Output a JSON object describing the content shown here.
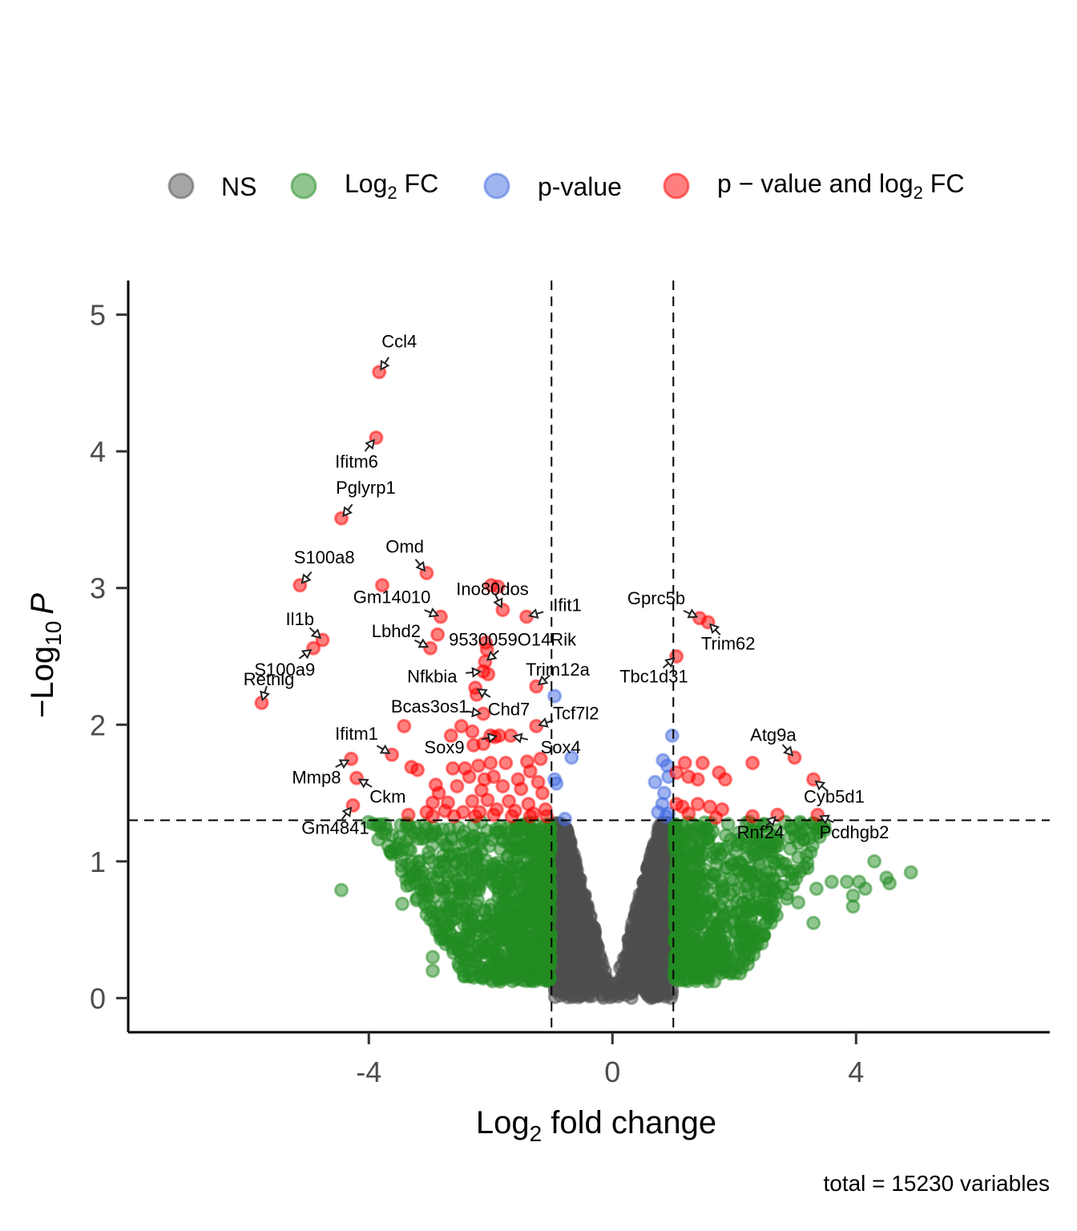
{
  "chart_data": {
    "type": "scatter",
    "subtype": "volcano",
    "title": "",
    "xlabel": "Log2 fold change",
    "xlabel_parts": {
      "base": "Log",
      "sub": "2",
      "rest": " fold change"
    },
    "ylabel": "-Log10 P",
    "ylabel_parts": {
      "prefix": "−Log",
      "sub": "10",
      "italic": "P"
    },
    "caption": "total = 15230 variables",
    "xlim": [
      -7.95,
      7.18
    ],
    "ylim": [
      -0.25,
      5.25
    ],
    "x_ticks": [
      -4,
      0,
      4
    ],
    "x_tick_labels": [
      "-4",
      "0",
      "4"
    ],
    "y_ticks": [
      0,
      1,
      2,
      3,
      4,
      5
    ],
    "y_tick_labels": [
      "0",
      "1",
      "2",
      "3",
      "4",
      "5"
    ],
    "grid": false,
    "cutoffs": {
      "log2fc": [
        -1,
        1
      ],
      "neg_log10_p": 1.301
    },
    "legend_position": "top",
    "legend": [
      {
        "key": "NS",
        "label": "NS",
        "color": "#4d4d4d"
      },
      {
        "key": "FC",
        "label_base": "Log",
        "label_sub": "2",
        "label_rest": " FC",
        "label": "Log2 FC",
        "color": "#228b22"
      },
      {
        "key": "P",
        "label": "p-value",
        "color": "#4169e1"
      },
      {
        "key": "FC_P",
        "label_base": "p − value and log",
        "label_sub": "2",
        "label_rest": " FC",
        "label": "p − value and log2 FC",
        "color": "#ff0000"
      }
    ],
    "total_variables": 15230,
    "labeled_points": [
      {
        "gene": "Ccl4",
        "x": -3.83,
        "y": 4.58,
        "category": "FC_P",
        "lx": -3.5,
        "ly": 4.76,
        "anchor": "middle"
      },
      {
        "gene": "Ifitm6",
        "x": -3.88,
        "y": 4.1,
        "category": "FC_P",
        "lx": -4.2,
        "ly": 3.88,
        "anchor": "middle"
      },
      {
        "gene": "Pglyrp1",
        "x": -4.45,
        "y": 3.51,
        "category": "FC_P",
        "lx": -4.05,
        "ly": 3.69,
        "anchor": "middle"
      },
      {
        "gene": "S100a8",
        "x": -5.13,
        "y": 3.02,
        "category": "FC_P",
        "lx": -4.73,
        "ly": 3.18,
        "anchor": "middle"
      },
      {
        "gene": "Omd",
        "x": -3.05,
        "y": 3.11,
        "category": "FC_P",
        "lx": -3.41,
        "ly": 3.26,
        "anchor": "middle"
      },
      {
        "gene": "Gm14010",
        "x": -2.82,
        "y": 2.79,
        "category": "FC_P",
        "lx": -3.62,
        "ly": 2.89,
        "anchor": "middle"
      },
      {
        "gene": "Ino80dos",
        "x": -1.8,
        "y": 2.84,
        "category": "FC_P",
        "lx": -1.97,
        "ly": 2.95,
        "anchor": "middle"
      },
      {
        "gene": "Ifit1",
        "x": -1.41,
        "y": 2.79,
        "category": "FC_P",
        "lx": -0.74,
        "ly": 2.83,
        "anchor": "middle"
      },
      {
        "gene": "Il1b",
        "x": -4.76,
        "y": 2.62,
        "category": "FC_P",
        "lx": -5.13,
        "ly": 2.73,
        "anchor": "middle"
      },
      {
        "gene": "S100a9",
        "x": -4.91,
        "y": 2.56,
        "category": "FC_P",
        "lx": -5.38,
        "ly": 2.36,
        "anchor": "middle"
      },
      {
        "gene": "Lbhd2",
        "x": -2.99,
        "y": 2.56,
        "category": "FC_P",
        "lx": -3.55,
        "ly": 2.64,
        "anchor": "middle"
      },
      {
        "gene": "9530059O14Rik",
        "x": -2.09,
        "y": 2.46,
        "category": "FC_P",
        "lx": -1.64,
        "ly": 2.58,
        "anchor": "middle"
      },
      {
        "gene": "Nfkbia",
        "x": -2.12,
        "y": 2.39,
        "category": "FC_P",
        "lx": -2.96,
        "ly": 2.31,
        "anchor": "middle"
      },
      {
        "gene": "Trim12a",
        "x": -1.25,
        "y": 2.28,
        "category": "FC_P",
        "lx": -0.9,
        "ly": 2.36,
        "anchor": "middle"
      },
      {
        "gene": "Retnlg",
        "x": -5.76,
        "y": 2.16,
        "category": "FC_P",
        "lx": -5.64,
        "ly": 2.29,
        "anchor": "middle"
      },
      {
        "gene": "Chd7",
        "x": -2.25,
        "y": 2.27,
        "category": "FC_P",
        "lx": -1.7,
        "ly": 2.07,
        "anchor": "middle"
      },
      {
        "gene": "Bcas3os1",
        "x": -2.12,
        "y": 2.08,
        "category": "FC_P",
        "lx": -3.0,
        "ly": 2.09,
        "anchor": "middle"
      },
      {
        "gene": "Tcf7l2",
        "x": -1.25,
        "y": 1.99,
        "category": "FC_P",
        "lx": -0.6,
        "ly": 2.04,
        "anchor": "middle"
      },
      {
        "gene": "Sox9",
        "x": -1.86,
        "y": 1.92,
        "category": "FC_P",
        "lx": -2.76,
        "ly": 1.79,
        "anchor": "middle"
      },
      {
        "gene": "Sox4",
        "x": -1.67,
        "y": 1.92,
        "category": "FC_P",
        "lx": -0.85,
        "ly": 1.79,
        "anchor": "middle"
      },
      {
        "gene": "Ifitm1",
        "x": -3.62,
        "y": 1.78,
        "category": "FC_P",
        "lx": -4.2,
        "ly": 1.89,
        "anchor": "middle"
      },
      {
        "gene": "Mmp8",
        "x": -4.29,
        "y": 1.75,
        "category": "FC_P",
        "lx": -4.86,
        "ly": 1.57,
        "anchor": "middle"
      },
      {
        "gene": "Ckm",
        "x": -4.2,
        "y": 1.61,
        "category": "FC_P",
        "lx": -3.69,
        "ly": 1.43,
        "anchor": "middle"
      },
      {
        "gene": "Gm4841",
        "x": -4.26,
        "y": 1.41,
        "category": "FC_P",
        "lx": -4.55,
        "ly": 1.2,
        "anchor": "middle"
      },
      {
        "gene": "Gprc5b",
        "x": 1.43,
        "y": 2.78,
        "category": "FC_P",
        "lx": 0.72,
        "ly": 2.88,
        "anchor": "middle"
      },
      {
        "gene": "Trim62",
        "x": 1.57,
        "y": 2.75,
        "category": "FC_P",
        "lx": 1.9,
        "ly": 2.55,
        "anchor": "middle"
      },
      {
        "gene": "Tbc1d31",
        "x": 1.05,
        "y": 2.5,
        "category": "FC_P",
        "lx": 0.68,
        "ly": 2.31,
        "anchor": "middle"
      },
      {
        "gene": "Atg9a",
        "x": 2.99,
        "y": 1.76,
        "category": "FC_P",
        "lx": 2.64,
        "ly": 1.88,
        "anchor": "middle"
      },
      {
        "gene": "Cyb5d1",
        "x": 3.3,
        "y": 1.6,
        "category": "FC_P",
        "lx": 3.64,
        "ly": 1.43,
        "anchor": "middle"
      },
      {
        "gene": "Rnf24",
        "x": 2.71,
        "y": 1.34,
        "category": "FC_P",
        "lx": 2.43,
        "ly": 1.17,
        "anchor": "middle"
      },
      {
        "gene": "Pcdhgb2",
        "x": 3.37,
        "y": 1.34,
        "category": "FC_P",
        "lx": 3.97,
        "ly": 1.17,
        "anchor": "middle"
      }
    ],
    "extra_points": {
      "red": [
        [
          -3.78,
          3.02
        ],
        [
          -1.99,
          3.02
        ],
        [
          -1.88,
          3.01
        ],
        [
          -2.87,
          2.66
        ],
        [
          -2.08,
          2.6
        ],
        [
          -2.06,
          2.55
        ],
        [
          -2.04,
          2.37
        ],
        [
          -2.23,
          2.22
        ],
        [
          -3.42,
          1.99
        ],
        [
          -2.48,
          1.99
        ],
        [
          -2.3,
          1.95
        ],
        [
          -2.65,
          1.92
        ],
        [
          -2.0,
          1.92
        ],
        [
          -1.93,
          1.91
        ],
        [
          -2.12,
          1.86
        ],
        [
          -2.28,
          1.85
        ],
        [
          -3.3,
          1.69
        ],
        [
          -3.2,
          1.67
        ],
        [
          -2.62,
          1.68
        ],
        [
          -2.42,
          1.68
        ],
        [
          -2.2,
          1.7
        ],
        [
          -2.0,
          1.72
        ],
        [
          -1.75,
          1.72
        ],
        [
          -1.4,
          1.73
        ],
        [
          -1.18,
          1.75
        ],
        [
          -1.35,
          1.66
        ],
        [
          -2.35,
          1.62
        ],
        [
          -2.1,
          1.6
        ],
        [
          -1.95,
          1.62
        ],
        [
          -1.22,
          1.58
        ],
        [
          -2.9,
          1.56
        ],
        [
          -2.55,
          1.55
        ],
        [
          -1.8,
          1.55
        ],
        [
          -1.5,
          1.53
        ],
        [
          -1.15,
          1.5
        ],
        [
          -2.95,
          1.43
        ],
        [
          -2.7,
          1.43
        ],
        [
          -2.3,
          1.44
        ],
        [
          -2.05,
          1.45
        ],
        [
          -1.7,
          1.44
        ],
        [
          -1.38,
          1.42
        ],
        [
          -1.1,
          1.38
        ],
        [
          -3.05,
          1.36
        ],
        [
          -2.75,
          1.37
        ],
        [
          -2.45,
          1.36
        ],
        [
          -2.18,
          1.36
        ],
        [
          -1.9,
          1.38
        ],
        [
          -1.6,
          1.37
        ],
        [
          -1.3,
          1.35
        ],
        [
          -3.35,
          1.34
        ],
        [
          -2.95,
          1.33
        ],
        [
          -2.6,
          1.33
        ],
        [
          -2.25,
          1.33
        ],
        [
          -1.95,
          1.34
        ],
        [
          -1.65,
          1.33
        ],
        [
          -1.35,
          1.33
        ],
        [
          -1.08,
          1.33
        ],
        [
          -2.85,
          1.5
        ],
        [
          -2.15,
          1.52
        ],
        [
          -1.55,
          1.6
        ],
        [
          1.19,
          1.72
        ],
        [
          1.48,
          1.72
        ],
        [
          1.75,
          1.65
        ],
        [
          1.85,
          1.6
        ],
        [
          1.25,
          1.62
        ],
        [
          1.05,
          1.65
        ],
        [
          1.4,
          1.6
        ],
        [
          2.3,
          1.72
        ],
        [
          1.15,
          1.4
        ],
        [
          1.4,
          1.42
        ],
        [
          1.6,
          1.4
        ],
        [
          1.8,
          1.38
        ],
        [
          1.25,
          1.35
        ],
        [
          1.05,
          1.42
        ],
        [
          2.3,
          1.33
        ],
        [
          1.7,
          1.32
        ]
      ],
      "blue": [
        [
          -0.95,
          2.21
        ],
        [
          -0.95,
          1.6
        ],
        [
          -0.92,
          1.57
        ],
        [
          -0.67,
          1.76
        ],
        [
          -0.78,
          1.31
        ],
        [
          0.98,
          1.92
        ],
        [
          0.83,
          1.74
        ],
        [
          0.9,
          1.7
        ],
        [
          0.7,
          1.58
        ],
        [
          0.85,
          1.5
        ],
        [
          0.92,
          1.62
        ],
        [
          0.82,
          1.42
        ],
        [
          0.75,
          1.36
        ],
        [
          0.92,
          1.35
        ],
        [
          0.88,
          1.33
        ]
      ],
      "green_outliers": [
        [
          -4.45,
          0.79
        ],
        [
          -3.45,
          0.69
        ],
        [
          -3.55,
          1.1
        ],
        [
          -3.35,
          1.09
        ],
        [
          -2.9,
          1.2
        ],
        [
          -2.95,
          0.88
        ],
        [
          -3.05,
          0.61
        ],
        [
          -2.9,
          0.53
        ],
        [
          -2.95,
          0.3
        ],
        [
          -2.95,
          0.2
        ],
        [
          3.1,
          1.2
        ],
        [
          3.4,
          1.18
        ],
        [
          4.3,
          1.0
        ],
        [
          4.05,
          0.85
        ],
        [
          4.15,
          0.8
        ],
        [
          3.85,
          0.85
        ],
        [
          4.5,
          0.88
        ],
        [
          4.9,
          0.92
        ],
        [
          4.55,
          0.84
        ],
        [
          3.2,
          0.95
        ],
        [
          3.35,
          0.8
        ],
        [
          3.6,
          0.85
        ],
        [
          3.95,
          0.75
        ],
        [
          3.05,
          0.7
        ],
        [
          2.55,
          0.65
        ],
        [
          2.6,
          0.55
        ],
        [
          3.3,
          0.55
        ],
        [
          3.95,
          0.67
        ],
        [
          2.45,
          0.4
        ]
      ]
    },
    "category_counts_shown": "densely overplotted; NS V-shape between |log2FC|<1, FC clouds outside cutoffs below p-threshold"
  }
}
